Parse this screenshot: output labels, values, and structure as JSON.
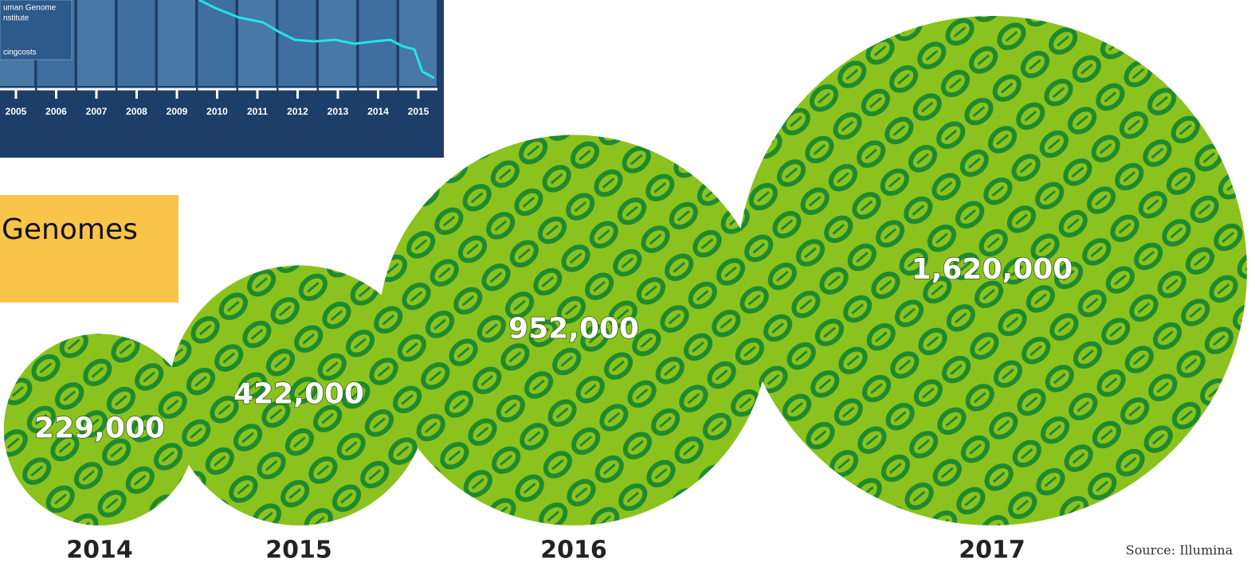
{
  "inset": {
    "legend": [
      "uman Genome",
      "nstitute",
      "cingcosts"
    ],
    "x_labels": [
      "2005",
      "2006",
      "2007",
      "2008",
      "2009",
      "2010",
      "2011",
      "2012",
      "2013",
      "2014",
      "2015"
    ]
  },
  "label_box": "Genomes",
  "chart_data": {
    "type": "bubble",
    "categories": [
      "2014",
      "2015",
      "2016",
      "2017"
    ],
    "values": [
      229000,
      422000,
      952000,
      1620000
    ],
    "value_labels": [
      "229,000",
      "422,000",
      "952,000",
      "1,620,000"
    ],
    "color": "#8cc21e",
    "source": "Source: Illumina"
  }
}
